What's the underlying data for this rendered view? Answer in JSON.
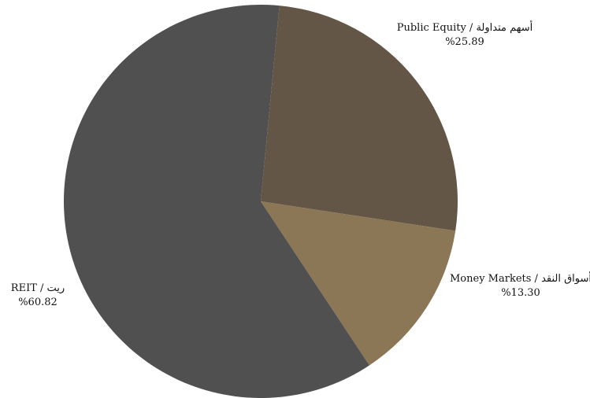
{
  "chart_data": {
    "type": "pie",
    "title": "",
    "slices": [
      {
        "name": "Public Equity / أسهم متداولة",
        "value": 25.89,
        "value_label": "%25.89",
        "color": "#645646"
      },
      {
        "name": "Money Markets / أسواق النقد",
        "value": 13.3,
        "value_label": "%13.30",
        "color": "#8b7655"
      },
      {
        "name": "REIT / ريت",
        "value": 60.82,
        "value_label": "%60.82",
        "color": "#505050"
      }
    ],
    "start_angle_deg": 0,
    "direction": "clockwise",
    "legend": "none",
    "labels": "outside"
  }
}
